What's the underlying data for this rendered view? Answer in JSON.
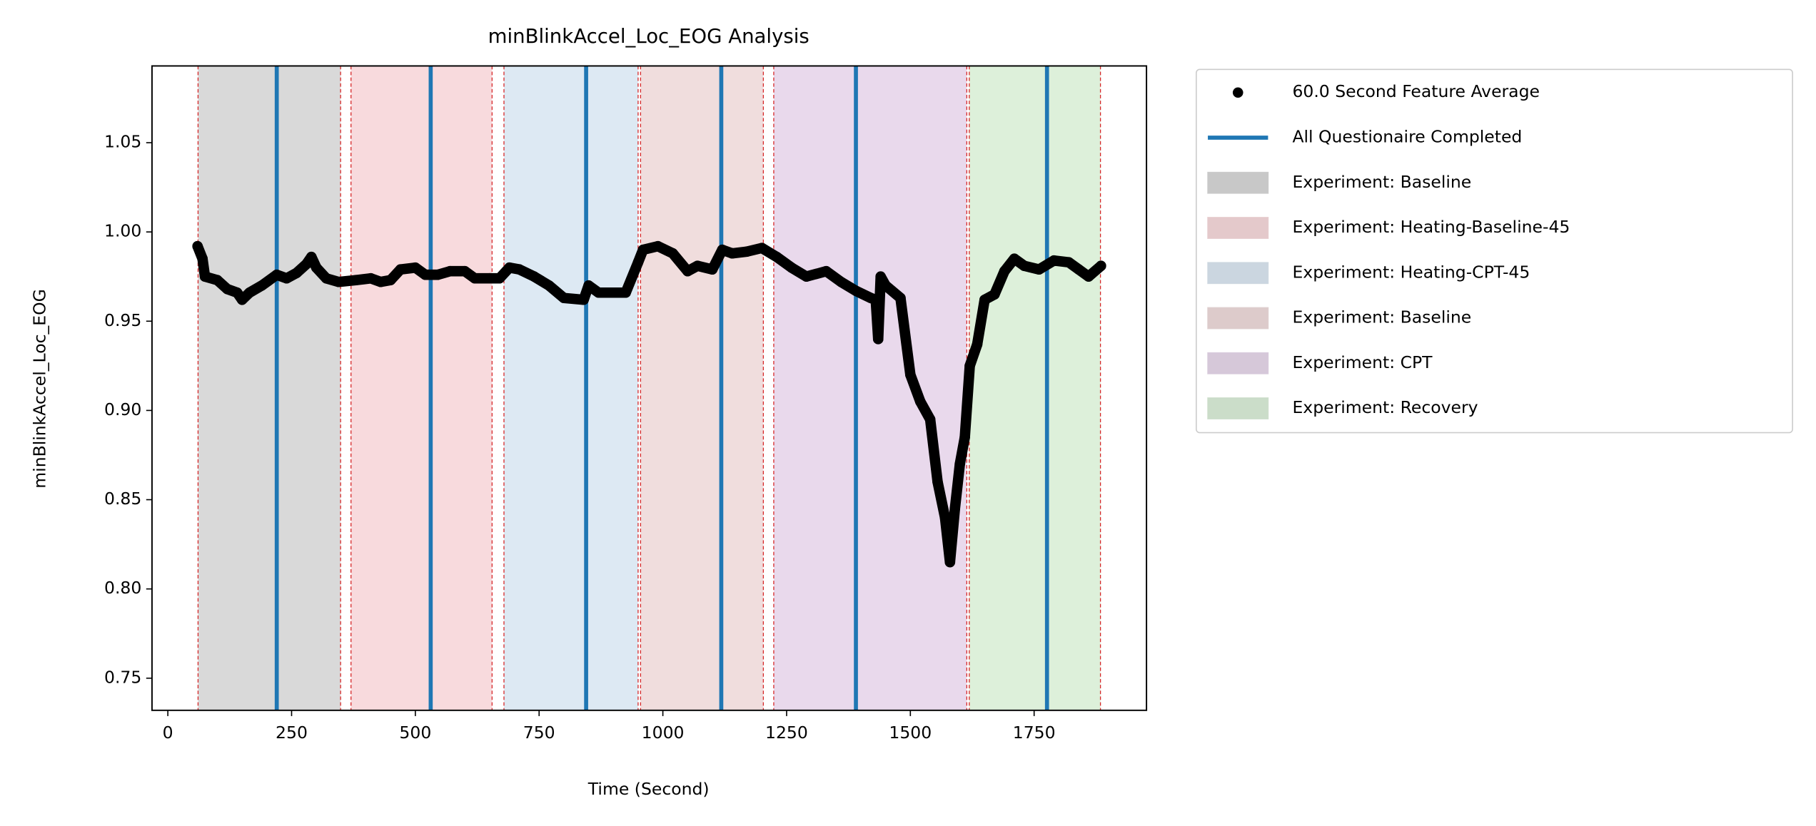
{
  "chart_data": {
    "type": "scatter",
    "title": "minBlinkAccel_Loc_EOG Analysis",
    "x_label": "Time (Second)",
    "y_label": "minBlinkAccel_Loc_EOG",
    "xlim": [
      -32,
      1977
    ],
    "ylim": [
      0.732,
      1.093
    ],
    "xticks": [
      0,
      250,
      500,
      750,
      1000,
      1250,
      1500,
      1750
    ],
    "yticks": [
      0.75,
      {
        "value": 0.8,
        "label": "0.80"
      },
      0.85,
      {
        "value": 0.9,
        "label": "0.90"
      },
      0.95,
      {
        "value": 1.0,
        "label": "1.00"
      },
      1.05
    ],
    "series": [
      {
        "name": "60.0 Second Feature Average",
        "color": "#000000",
        "x": [
          60,
          70,
          75,
          100,
          120,
          140,
          150,
          165,
          190,
          220,
          240,
          260,
          280,
          290,
          300,
          320,
          345,
          380,
          410,
          430,
          450,
          470,
          500,
          520,
          545,
          570,
          600,
          620,
          650,
          670,
          690,
          710,
          740,
          770,
          800,
          840,
          850,
          870,
          900,
          925,
          950,
          960,
          990,
          1020,
          1050,
          1070,
          1100,
          1120,
          1140,
          1170,
          1200,
          1230,
          1260,
          1290,
          1330,
          1360,
          1390,
          1420,
          1430,
          1435,
          1440,
          1450,
          1480,
          1500,
          1520,
          1540,
          1555,
          1570,
          1580,
          1590,
          1600,
          1610,
          1620,
          1635,
          1650,
          1670,
          1690,
          1710,
          1730,
          1760,
          1790,
          1820,
          1840,
          1860,
          1885
        ],
        "values": [
          0.992,
          0.985,
          0.975,
          0.973,
          0.968,
          0.966,
          0.962,
          0.966,
          0.97,
          0.976,
          0.974,
          0.977,
          0.982,
          0.986,
          0.98,
          0.974,
          0.972,
          0.973,
          0.974,
          0.972,
          0.973,
          0.979,
          0.98,
          0.976,
          0.976,
          0.978,
          0.978,
          0.974,
          0.974,
          0.974,
          0.98,
          0.979,
          0.975,
          0.97,
          0.963,
          0.962,
          0.97,
          0.966,
          0.966,
          0.966,
          0.983,
          0.99,
          0.992,
          0.988,
          0.978,
          0.981,
          0.979,
          0.99,
          0.988,
          0.989,
          0.991,
          0.986,
          0.98,
          0.975,
          0.978,
          0.972,
          0.967,
          0.963,
          0.962,
          0.94,
          0.975,
          0.97,
          0.963,
          0.92,
          0.905,
          0.895,
          0.86,
          0.84,
          0.815,
          0.845,
          0.87,
          0.885,
          0.925,
          0.937,
          0.962,
          0.965,
          0.978,
          0.985,
          0.981,
          0.979,
          0.984,
          0.983,
          0.979,
          0.975,
          0.981
        ]
      }
    ],
    "vlines": {
      "name": "All Questionaire Completed",
      "color": "#1f77b4",
      "x": [
        220,
        531,
        845,
        1118,
        1390,
        1776
      ]
    },
    "spans": [
      {
        "label": "Experiment: Baseline",
        "color": "#d9d9d9",
        "start": 61,
        "end": 349
      },
      {
        "label": "Experiment: Heating-Baseline-45",
        "color": "#f8dadd",
        "start": 370,
        "end": 655
      },
      {
        "label": "Experiment: Heating-CPT-45",
        "color": "#dde9f3",
        "start": 679,
        "end": 950
      },
      {
        "label": "Experiment: Baseline",
        "color": "#f0dddd",
        "start": 955,
        "end": 1203
      },
      {
        "label": "Experiment: CPT",
        "color": "#e9d9ec",
        "start": 1224,
        "end": 1614
      },
      {
        "label": "Experiment: Recovery",
        "color": "#ddf0da",
        "start": 1619,
        "end": 1884
      }
    ]
  }
}
